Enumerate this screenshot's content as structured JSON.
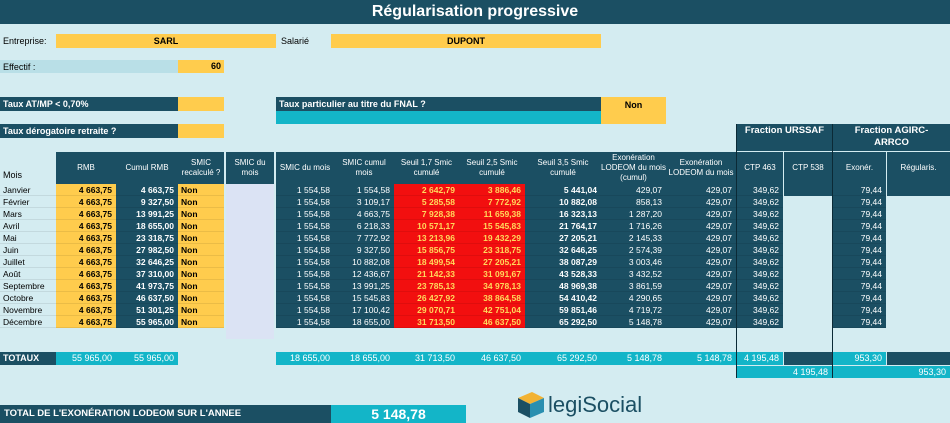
{
  "title": "Régularisation progressive",
  "info": {
    "entreprise_label": "Entreprise:",
    "entreprise_value": "SARL",
    "salarie_label": "Salarié",
    "salarie_value": "DUPONT",
    "effectif_label": "Effectif :",
    "effectif_value": "60",
    "taux_atmp_label": "Taux AT/MP < 0,70%",
    "taux_fnal_label": "Taux particulier au titre du FNAL ?",
    "taux_fnal_value": "Non",
    "taux_derog_label": "Taux dérogatoire retraite ?"
  },
  "fractions": {
    "urssaf": "Fraction URSSAF",
    "agirc": "Fraction AGIRC-ARRCO"
  },
  "headers": {
    "mois": "Mois",
    "rmb": "RMB",
    "cumul_rmb": "Cumul RMB",
    "smic_recalc": "SMIC recalculé ?",
    "smic_mois_a": "SMIC du mois",
    "smic_mois": "SMIC du mois",
    "smic_cumul": "SMIC cumul mois",
    "seuil17": "Seuil 1,7 Smic cumulé",
    "seuil25": "Seuil 2,5 Smic cumulé",
    "seuil35": "Seuil 3,5 Smic cumulé",
    "exo_cumul": "Exonération LODEOM du mois (cumul)",
    "exo_mois": "Exonération LODEOM du mois",
    "ctp463": "CTP 463",
    "ctp538": "CTP 538",
    "exoner": "Exonér.",
    "regularis": "Régularis."
  },
  "rows": [
    {
      "mois": "Janvier",
      "rmb": "4 663,75",
      "cumul": "4 663,75",
      "recalc": "Non",
      "smic": "1 554,58",
      "smic_cumul": "1 554,58",
      "s17": "2 642,79",
      "s25": "3 886,46",
      "s35": "5 441,04",
      "exo_cumul": "429,07",
      "exo": "429,07",
      "ctp463": "349,62",
      "exoner": "79,44"
    },
    {
      "mois": "Février",
      "rmb": "4 663,75",
      "cumul": "9 327,50",
      "recalc": "Non",
      "smic": "1 554,58",
      "smic_cumul": "3 109,17",
      "s17": "5 285,58",
      "s25": "7 772,92",
      "s35": "10 882,08",
      "exo_cumul": "858,13",
      "exo": "429,07",
      "ctp463": "349,62",
      "exoner": "79,44"
    },
    {
      "mois": "Mars",
      "rmb": "4 663,75",
      "cumul": "13 991,25",
      "recalc": "Non",
      "smic": "1 554,58",
      "smic_cumul": "4 663,75",
      "s17": "7 928,38",
      "s25": "11 659,38",
      "s35": "16 323,13",
      "exo_cumul": "1 287,20",
      "exo": "429,07",
      "ctp463": "349,62",
      "exoner": "79,44"
    },
    {
      "mois": "Avril",
      "rmb": "4 663,75",
      "cumul": "18 655,00",
      "recalc": "Non",
      "smic": "1 554,58",
      "smic_cumul": "6 218,33",
      "s17": "10 571,17",
      "s25": "15 545,83",
      "s35": "21 764,17",
      "exo_cumul": "1 716,26",
      "exo": "429,07",
      "ctp463": "349,62",
      "exoner": "79,44"
    },
    {
      "mois": "Mai",
      "rmb": "4 663,75",
      "cumul": "23 318,75",
      "recalc": "Non",
      "smic": "1 554,58",
      "smic_cumul": "7 772,92",
      "s17": "13 213,96",
      "s25": "19 432,29",
      "s35": "27 205,21",
      "exo_cumul": "2 145,33",
      "exo": "429,07",
      "ctp463": "349,62",
      "exoner": "79,44"
    },
    {
      "mois": "Juin",
      "rmb": "4 663,75",
      "cumul": "27 982,50",
      "recalc": "Non",
      "smic": "1 554,58",
      "smic_cumul": "9 327,50",
      "s17": "15 856,75",
      "s25": "23 318,75",
      "s35": "32 646,25",
      "exo_cumul": "2 574,39",
      "exo": "429,07",
      "ctp463": "349,62",
      "exoner": "79,44"
    },
    {
      "mois": "Juillet",
      "rmb": "4 663,75",
      "cumul": "32 646,25",
      "recalc": "Non",
      "smic": "1 554,58",
      "smic_cumul": "10 882,08",
      "s17": "18 499,54",
      "s25": "27 205,21",
      "s35": "38 087,29",
      "exo_cumul": "3 003,46",
      "exo": "429,07",
      "ctp463": "349,62",
      "exoner": "79,44"
    },
    {
      "mois": "Août",
      "rmb": "4 663,75",
      "cumul": "37 310,00",
      "recalc": "Non",
      "smic": "1 554,58",
      "smic_cumul": "12 436,67",
      "s17": "21 142,33",
      "s25": "31 091,67",
      "s35": "43 528,33",
      "exo_cumul": "3 432,52",
      "exo": "429,07",
      "ctp463": "349,62",
      "exoner": "79,44"
    },
    {
      "mois": "Septembre",
      "rmb": "4 663,75",
      "cumul": "41 973,75",
      "recalc": "Non",
      "smic": "1 554,58",
      "smic_cumul": "13 991,25",
      "s17": "23 785,13",
      "s25": "34 978,13",
      "s35": "48 969,38",
      "exo_cumul": "3 861,59",
      "exo": "429,07",
      "ctp463": "349,62",
      "exoner": "79,44"
    },
    {
      "mois": "Octobre",
      "rmb": "4 663,75",
      "cumul": "46 637,50",
      "recalc": "Non",
      "smic": "1 554,58",
      "smic_cumul": "15 545,83",
      "s17": "26 427,92",
      "s25": "38 864,58",
      "s35": "54 410,42",
      "exo_cumul": "4 290,65",
      "exo": "429,07",
      "ctp463": "349,62",
      "exoner": "79,44"
    },
    {
      "mois": "Novembre",
      "rmb": "4 663,75",
      "cumul": "51 301,25",
      "recalc": "Non",
      "smic": "1 554,58",
      "smic_cumul": "17 100,42",
      "s17": "29 070,71",
      "s25": "42 751,04",
      "s35": "59 851,46",
      "exo_cumul": "4 719,72",
      "exo": "429,07",
      "ctp463": "349,62",
      "exoner": "79,44"
    },
    {
      "mois": "Décembre",
      "rmb": "4 663,75",
      "cumul": "55 965,00",
      "recalc": "Non",
      "smic": "1 554,58",
      "smic_cumul": "18 655,00",
      "s17": "31 713,50",
      "s25": "46 637,50",
      "s35": "65 292,50",
      "exo_cumul": "5 148,78",
      "exo": "429,07",
      "ctp463": "349,62",
      "exoner": "79,44"
    }
  ],
  "totals": {
    "label": "TOTAUX",
    "rmb": "55 965,00",
    "cumul": "55 965,00",
    "smic": "18 655,00",
    "smic_cumul": "18 655,00",
    "s17": "31 713,50",
    "s25": "46 637,50",
    "s35": "65 292,50",
    "exo_cumul": "5 148,78",
    "exo": "5 148,78",
    "ctp463": "4 195,48",
    "exoner": "953,30",
    "urssaf_total": "4 195,48",
    "agirc_total": "953,30"
  },
  "footer": {
    "label": "TOTAL DE L'EXONÉRATION LODEOM SUR L'ANNEE",
    "value": "5 148,78"
  },
  "logo": {
    "text": "legiSocial"
  }
}
